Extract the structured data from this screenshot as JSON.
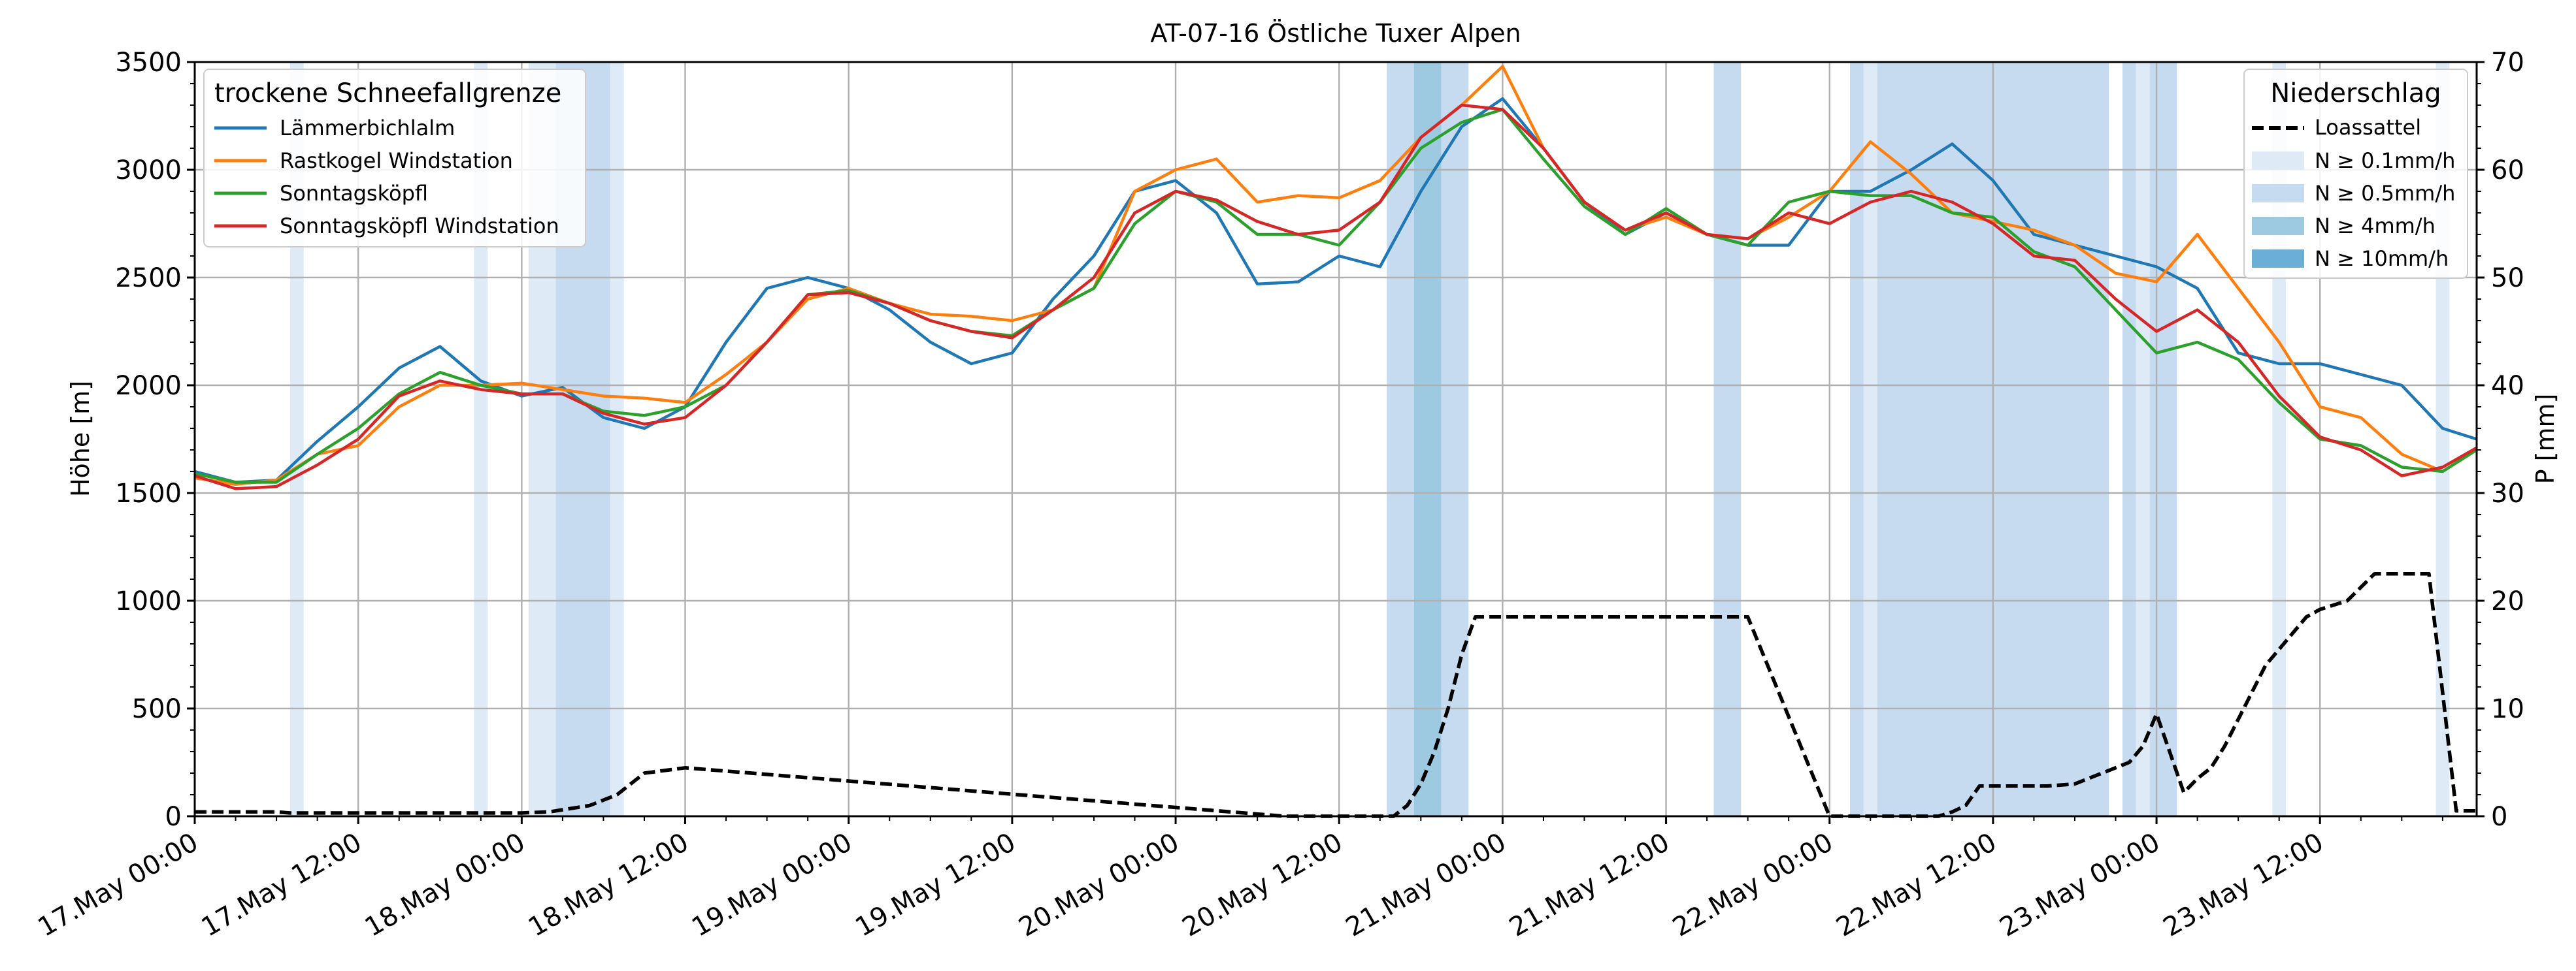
{
  "chart_data": {
    "type": "line",
    "title": "AT-07-16 Östliche Tuxer Alpen",
    "ylabel": "Höhe [m]",
    "ylabel_right": "P [mm]",
    "ylim": [
      0,
      3500
    ],
    "ylim_right": [
      0,
      70
    ],
    "y_ticks": [
      0,
      500,
      1000,
      1500,
      2000,
      2500,
      3000,
      3500
    ],
    "y_ticks_right": [
      0,
      10,
      20,
      30,
      40,
      50,
      60,
      70
    ],
    "x_range_hours": [
      0,
      167.5
    ],
    "x_tick_labels": [
      "17.May 00:00",
      "17.May 12:00",
      "18.May 00:00",
      "18.May 12:00",
      "19.May 00:00",
      "19.May 12:00",
      "20.May 00:00",
      "20.May 12:00",
      "21.May 00:00",
      "21.May 12:00",
      "22.May 00:00",
      "22.May 12:00",
      "23.May 00:00",
      "23.May 12:00"
    ],
    "grid": true,
    "legend_left": {
      "title": "trockene Schneefallgrenze",
      "placement": "top-left"
    },
    "legend_right": {
      "title": "Niederschlag",
      "placement": "top-right",
      "line_label": "Loassattel",
      "bands": [
        {
          "label": "N ≥ 0.1mm/h",
          "color": "#deebf7"
        },
        {
          "label": "N ≥ 0.5mm/h",
          "color": "#c6dbef"
        },
        {
          "label": "N ≥ 4mm/h",
          "color": "#9ecae1"
        },
        {
          "label": "N ≥ 10mm/h",
          "color": "#6baed6"
        }
      ]
    },
    "series": [
      {
        "name": "Lämmerbichlalm",
        "color": "#1f77b4",
        "x": [
          0,
          3,
          6,
          9,
          12,
          15,
          18,
          21,
          24,
          27,
          30,
          33,
          36,
          39,
          42,
          45,
          48,
          51,
          54,
          57,
          60,
          63,
          66,
          69,
          72,
          75,
          78,
          81,
          84,
          87,
          90,
          93,
          96,
          99,
          102,
          105,
          108,
          111,
          114,
          117,
          120,
          123,
          126,
          129,
          132,
          135,
          138,
          141,
          144,
          147,
          150,
          153,
          156,
          159,
          162,
          165,
          167.5
        ],
        "y": [
          1600,
          1550,
          1560,
          1740,
          1900,
          2080,
          2180,
          2020,
          1950,
          1990,
          1850,
          1800,
          1900,
          2200,
          2450,
          2500,
          2450,
          2350,
          2200,
          2100,
          2150,
          2400,
          2600,
          2900,
          2950,
          2800,
          2470,
          2480,
          2600,
          2550,
          2900,
          3200,
          3330,
          3100,
          2850,
          2700,
          2800,
          2700,
          2650,
          2650,
          2900,
          2900,
          3000,
          3120,
          2950,
          2700,
          2650,
          2600,
          2550,
          2450,
          2150,
          2100,
          2100,
          2050,
          2000,
          1800,
          1750
        ]
      },
      {
        "name": "Rastkogel Windstation",
        "color": "#ff7f0e",
        "x": [
          0,
          3,
          6,
          9,
          12,
          15,
          18,
          21,
          24,
          27,
          30,
          33,
          36,
          39,
          42,
          45,
          48,
          51,
          54,
          57,
          60,
          63,
          66,
          69,
          72,
          75,
          78,
          81,
          84,
          87,
          90,
          93,
          96,
          99,
          102,
          105,
          108,
          111,
          114,
          117,
          120,
          123,
          126,
          129,
          132,
          135,
          138,
          141,
          144,
          147,
          150,
          153,
          156,
          159,
          162,
          165,
          167.5
        ],
        "y": [
          1570,
          1540,
          1560,
          1680,
          1720,
          1900,
          2000,
          2000,
          2010,
          1980,
          1950,
          1940,
          1920,
          2050,
          2200,
          2400,
          2450,
          2380,
          2330,
          2320,
          2300,
          2350,
          2450,
          2900,
          3000,
          3050,
          2850,
          2880,
          2870,
          2950,
          3150,
          3300,
          3480,
          3100,
          2850,
          2720,
          2780,
          2700,
          2680,
          2780,
          2900,
          3130,
          2980,
          2800,
          2760,
          2720,
          2650,
          2520,
          2480,
          2700,
          2450,
          2200,
          1900,
          1850,
          1680,
          1600,
          1700
        ]
      },
      {
        "name": "Sonntagsköpfl",
        "color": "#2ca02c",
        "x": [
          0,
          3,
          6,
          9,
          12,
          15,
          18,
          21,
          24,
          27,
          30,
          33,
          36,
          39,
          42,
          45,
          48,
          51,
          54,
          57,
          60,
          63,
          66,
          69,
          72,
          75,
          78,
          81,
          84,
          87,
          90,
          93,
          96,
          99,
          102,
          105,
          108,
          111,
          114,
          117,
          120,
          123,
          126,
          129,
          132,
          135,
          138,
          141,
          144,
          147,
          150,
          153,
          156,
          159,
          162,
          165,
          167.5
        ],
        "y": [
          1590,
          1550,
          1550,
          1680,
          1800,
          1960,
          2060,
          2000,
          1960,
          1960,
          1880,
          1860,
          1900,
          2000,
          2200,
          2420,
          2440,
          2380,
          2300,
          2250,
          2230,
          2350,
          2450,
          2750,
          2900,
          2850,
          2700,
          2700,
          2650,
          2850,
          3100,
          3220,
          3280,
          3050,
          2830,
          2700,
          2820,
          2700,
          2650,
          2850,
          2900,
          2880,
          2880,
          2800,
          2780,
          2620,
          2550,
          2350,
          2150,
          2200,
          2120,
          1920,
          1750,
          1720,
          1620,
          1600,
          1700
        ]
      },
      {
        "name": "Sonntagsköpfl Windstation",
        "color": "#d62728",
        "x": [
          0,
          3,
          6,
          9,
          12,
          15,
          18,
          21,
          24,
          27,
          30,
          33,
          36,
          39,
          42,
          45,
          48,
          51,
          54,
          57,
          60,
          63,
          66,
          69,
          72,
          75,
          78,
          81,
          84,
          87,
          90,
          93,
          96,
          99,
          102,
          105,
          108,
          111,
          114,
          117,
          120,
          123,
          126,
          129,
          132,
          135,
          138,
          141,
          144,
          147,
          150,
          153,
          156,
          159,
          162,
          165,
          167.5
        ],
        "y": [
          1580,
          1520,
          1530,
          1630,
          1750,
          1950,
          2020,
          1980,
          1960,
          1960,
          1870,
          1820,
          1850,
          2000,
          2200,
          2420,
          2430,
          2380,
          2300,
          2250,
          2220,
          2350,
          2500,
          2800,
          2900,
          2860,
          2760,
          2700,
          2720,
          2850,
          3150,
          3300,
          3280,
          3100,
          2850,
          2720,
          2800,
          2700,
          2680,
          2800,
          2750,
          2850,
          2900,
          2850,
          2750,
          2600,
          2580,
          2400,
          2250,
          2350,
          2200,
          1950,
          1760,
          1700,
          1580,
          1620,
          1710
        ]
      }
    ],
    "precip_line": {
      "name": "Loassattel",
      "color": "#000000",
      "x": [
        0,
        6,
        7,
        10,
        14,
        18,
        22,
        24,
        26,
        29,
        31,
        32,
        33,
        36,
        80,
        88,
        89,
        90,
        91,
        92,
        93,
        94,
        102,
        104,
        105,
        106,
        107,
        108,
        111,
        112,
        113,
        114,
        120,
        121,
        122,
        123,
        124,
        126,
        128,
        129,
        130,
        131,
        132,
        133,
        134,
        135,
        136,
        138,
        140,
        142,
        143,
        144,
        146,
        147,
        148,
        149,
        150,
        152,
        153,
        154,
        155,
        156,
        158,
        160,
        161,
        162,
        163,
        164,
        166,
        167.5
      ],
      "y": [
        0.4,
        0.4,
        0.3,
        0.3,
        0.3,
        0.3,
        0.3,
        0.3,
        0.4,
        1.0,
        2.0,
        3.0,
        4.0,
        4.5,
        0.0,
        0.0,
        1.0,
        3.0,
        6.0,
        10.0,
        15.0,
        18.5,
        18.5,
        18.5,
        18.5,
        18.5,
        18.5,
        18.5,
        18.5,
        18.5,
        18.5,
        18.5,
        0.0,
        0.0,
        0.0,
        0.0,
        0.0,
        0.0,
        0.0,
        0.4,
        1.0,
        2.8,
        2.8,
        2.8,
        2.8,
        2.8,
        2.8,
        3.0,
        4.0,
        5.0,
        6.5,
        9.5,
        2.2,
        3.5,
        4.5,
        6.5,
        9.0,
        14.0,
        15.5,
        17.0,
        18.5,
        19.2,
        20.0,
        22.5,
        22.5,
        22.5,
        22.5,
        22.5,
        0.5,
        0.5
      ]
    },
    "precip_bands": [
      {
        "start": 7,
        "end": 8,
        "level": 1
      },
      {
        "start": 20.5,
        "end": 21.5,
        "level": 1
      },
      {
        "start": 24.5,
        "end": 26.5,
        "level": 1
      },
      {
        "start": 26.5,
        "end": 30.5,
        "level": 2
      },
      {
        "start": 30.5,
        "end": 31.5,
        "level": 1
      },
      {
        "start": 87.5,
        "end": 89.5,
        "level": 2
      },
      {
        "start": 89.5,
        "end": 91.5,
        "level": 3
      },
      {
        "start": 91.5,
        "end": 93.5,
        "level": 2
      },
      {
        "start": 111.5,
        "end": 113.5,
        "level": 2
      },
      {
        "start": 121.5,
        "end": 122.5,
        "level": 2
      },
      {
        "start": 122.5,
        "end": 123.5,
        "level": 1
      },
      {
        "start": 123.5,
        "end": 140.5,
        "level": 2
      },
      {
        "start": 141.5,
        "end": 142.5,
        "level": 2
      },
      {
        "start": 142.5,
        "end": 143.5,
        "level": 1
      },
      {
        "start": 143.5,
        "end": 145.5,
        "level": 2
      },
      {
        "start": 152.5,
        "end": 153.5,
        "level": 1
      },
      {
        "start": 164.5,
        "end": 165.5,
        "level": 1
      }
    ]
  }
}
